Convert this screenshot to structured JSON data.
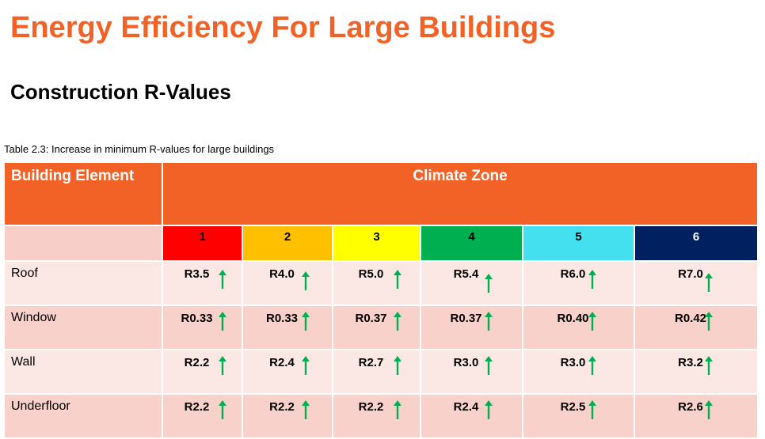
{
  "title": "Energy Efficiency For Large Buildings",
  "subtitle": "Construction R-Values",
  "table": {
    "caption": "Table 2.3: Increase in minimum R-values for large buildings",
    "header_element": "Building Element",
    "header_zone": "Climate Zone",
    "zones": [
      {
        "label": "1",
        "color": "#FF0000",
        "text_color": "#000000"
      },
      {
        "label": "2",
        "color": "#FFC000",
        "text_color": "#000000"
      },
      {
        "label": "3",
        "color": "#FFFF00",
        "text_color": "#000000"
      },
      {
        "label": "4",
        "color": "#00B050",
        "text_color": "#000000"
      },
      {
        "label": "5",
        "color": "#45E0F0",
        "text_color": "#000000"
      },
      {
        "label": "6",
        "color": "#002060",
        "text_color": "#FFFFFF"
      }
    ],
    "rows": [
      {
        "element": "Roof",
        "values": [
          "R3.5",
          "R4.0",
          "R5.0",
          "R5.4",
          "R6.0",
          "R7.0"
        ]
      },
      {
        "element": "Window",
        "values": [
          "R0.33",
          "R0.33",
          "R0.37",
          "R0.37",
          "R0.40",
          "R0.42"
        ]
      },
      {
        "element": "Wall",
        "values": [
          "R2.2",
          "R2.4",
          "R2.7",
          "R3.0",
          "R3.0",
          "R3.2"
        ]
      },
      {
        "element": "Underfloor",
        "values": [
          "R2.2",
          "R2.2",
          "R2.2",
          "R2.4",
          "R2.5",
          "R2.6"
        ]
      }
    ],
    "indicator_icon": "up-arrow-icon",
    "indicator_color": "#00B050",
    "header_color": "#F26125"
  }
}
